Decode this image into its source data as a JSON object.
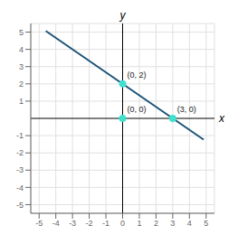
{
  "chart_data": {
    "type": "scatter",
    "xlabel": "x",
    "ylabel": "y",
    "xlim": [
      -5.5,
      5.5
    ],
    "ylim": [
      -5.5,
      5.5
    ],
    "xticks": [
      -5,
      -4,
      -3,
      -2,
      -1,
      0,
      1,
      2,
      3,
      4,
      5
    ],
    "yticks": [
      -5,
      -4,
      -3,
      -2,
      -1,
      1,
      2,
      3,
      4,
      5
    ],
    "grid": true,
    "series": [
      {
        "type": "line",
        "color": "#1a5276",
        "x": [
          -4.6,
          4.85
        ],
        "values": [
          5.07,
          -1.23
        ]
      },
      {
        "type": "scatter",
        "color": "#40e0d0",
        "x": [
          0,
          3,
          0
        ],
        "values": [
          2,
          0,
          0
        ],
        "value_labels": [
          "(0, 2)",
          "(3, 0)",
          "(0, 0)"
        ],
        "data_labels": true
      }
    ]
  }
}
